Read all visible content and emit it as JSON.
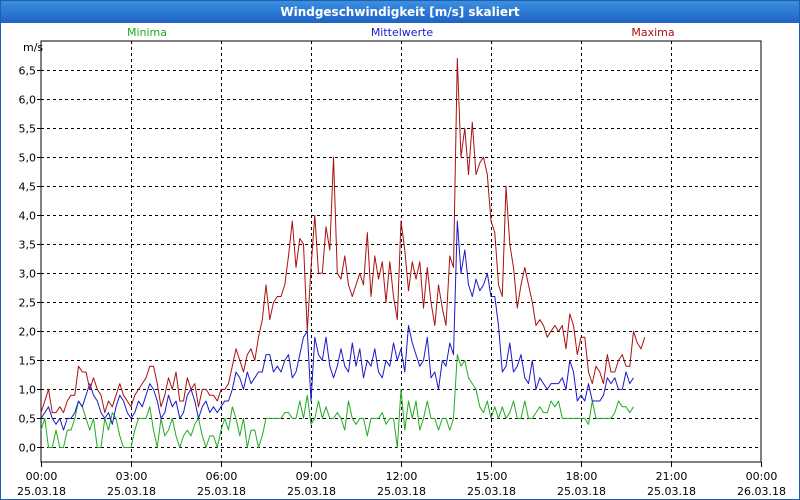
{
  "window": {
    "title": "Windgeschwindigkeit [m/s] skaliert"
  },
  "chart_data": {
    "type": "line",
    "title": "Windgeschwindigkeit [m/s] skaliert",
    "ylabel": "m/s",
    "xlabel": "",
    "ylim": [
      -0.25,
      7.0
    ],
    "xlim": [
      0,
      24
    ],
    "grid": true,
    "yticks": [
      0.0,
      0.5,
      1.0,
      1.5,
      2.0,
      2.5,
      3.0,
      3.5,
      4.0,
      4.5,
      5.0,
      5.5,
      6.0,
      6.5
    ],
    "ytick_labels": [
      "0,0",
      "0,5",
      "1,0",
      "1,5",
      "2,0",
      "2,5",
      "3,0",
      "3,5",
      "4,0",
      "4,5",
      "5,0",
      "5,5",
      "6,0",
      "6,5"
    ],
    "xticks": [
      {
        "hour": 0,
        "time": "00:00",
        "date": "25.03.18"
      },
      {
        "hour": 3,
        "time": "03:00",
        "date": "25.03.18"
      },
      {
        "hour": 6,
        "time": "06:00",
        "date": "25.03.18"
      },
      {
        "hour": 9,
        "time": "09:00",
        "date": "25.03.18"
      },
      {
        "hour": 12,
        "time": "12:00",
        "date": "25.03.18"
      },
      {
        "hour": 15,
        "time": "15:00",
        "date": "25.03.18"
      },
      {
        "hour": 18,
        "time": "18:00",
        "date": "25.03.18"
      },
      {
        "hour": 21,
        "time": "21:00",
        "date": "25.03.18"
      },
      {
        "hour": 24,
        "time": "00:00",
        "date": "26.03.18"
      }
    ],
    "legend": [
      "Minima",
      "Mittelwerte",
      "Maxima"
    ],
    "x_step_hours": 0.125,
    "series": [
      {
        "name": "Minima",
        "color": "#22aa22",
        "values": [
          0.3,
          0.5,
          0.0,
          0.0,
          0.3,
          0.0,
          0.0,
          0.3,
          0.3,
          0.5,
          0.8,
          0.7,
          0.5,
          0.3,
          0.5,
          0.0,
          0.0,
          0.5,
          0.3,
          0.6,
          0.5,
          0.2,
          0.0,
          0.0,
          0.0,
          0.3,
          0.5,
          0.5,
          0.5,
          0.7,
          0.3,
          0.0,
          0.5,
          0.2,
          0.3,
          0.5,
          0.2,
          0.0,
          0.2,
          0.3,
          0.2,
          0.4,
          0.5,
          0.2,
          0.0,
          0.2,
          0.2,
          0.0,
          0.3,
          0.5,
          0.3,
          0.7,
          0.5,
          0.2,
          0.5,
          0.0,
          0.3,
          0.3,
          0.0,
          0.2,
          0.5,
          0.5,
          0.5,
          0.5,
          0.5,
          0.6,
          0.6,
          0.5,
          0.5,
          0.8,
          0.5,
          0.9,
          0.4,
          0.5,
          0.8,
          0.5,
          0.7,
          0.5,
          0.5,
          0.6,
          0.5,
          0.3,
          0.8,
          0.5,
          0.4,
          0.5,
          0.5,
          0.2,
          0.5,
          0.5,
          0.5,
          0.6,
          0.4,
          0.5,
          0.5,
          0.0,
          1.0,
          0.3,
          0.8,
          0.5,
          0.8,
          0.3,
          0.5,
          0.8,
          0.5,
          0.5,
          0.3,
          0.5,
          0.5,
          0.3,
          0.5,
          1.6,
          1.4,
          1.5,
          1.2,
          1.1,
          1.0,
          0.7,
          0.6,
          0.8,
          0.5,
          0.7,
          0.5,
          0.7,
          0.5,
          0.6,
          0.8,
          0.5,
          0.5,
          0.8,
          0.5,
          0.5,
          0.6,
          0.7,
          0.6,
          0.6,
          0.8,
          0.7,
          0.8,
          0.5,
          0.5,
          0.5,
          0.5,
          0.5,
          0.5,
          0.5,
          0.4,
          0.8,
          0.5,
          0.5,
          0.5,
          0.5,
          0.5,
          0.6,
          0.8,
          0.7,
          0.7,
          0.6,
          0.7
        ]
      },
      {
        "name": "Mittelwerte",
        "color": "#1a1ac8",
        "values": [
          0.5,
          0.6,
          0.7,
          0.5,
          0.4,
          0.5,
          0.3,
          0.5,
          0.5,
          0.6,
          0.8,
          0.7,
          0.9,
          1.1,
          0.9,
          0.8,
          0.6,
          0.5,
          0.6,
          0.4,
          0.7,
          0.9,
          0.8,
          0.6,
          0.5,
          0.6,
          0.8,
          0.7,
          0.9,
          1.1,
          1.0,
          0.8,
          0.5,
          0.6,
          0.9,
          0.7,
          0.8,
          0.5,
          0.6,
          0.9,
          1.0,
          0.8,
          0.5,
          0.7,
          0.8,
          0.6,
          0.7,
          0.6,
          0.7,
          0.8,
          0.8,
          1.0,
          1.3,
          1.2,
          1.0,
          1.3,
          1.1,
          1.2,
          1.3,
          1.3,
          1.6,
          1.6,
          1.3,
          1.4,
          1.3,
          1.5,
          1.6,
          1.2,
          1.3,
          1.6,
          1.9,
          2.0,
          0.8,
          1.9,
          1.6,
          1.5,
          1.9,
          1.4,
          1.2,
          1.4,
          1.7,
          1.4,
          1.3,
          1.8,
          1.4,
          1.7,
          1.2,
          1.5,
          1.4,
          1.7,
          1.3,
          1.2,
          1.5,
          1.4,
          1.8,
          1.5,
          1.7,
          1.3,
          2.1,
          1.8,
          1.6,
          1.4,
          1.5,
          1.9,
          1.2,
          1.3,
          1.0,
          1.5,
          1.4,
          1.8,
          1.6,
          3.9,
          3.0,
          3.4,
          2.8,
          2.6,
          2.9,
          2.7,
          2.8,
          3.0,
          2.6,
          2.6,
          2.1,
          1.3,
          1.4,
          1.8,
          1.3,
          1.4,
          1.6,
          1.2,
          1.1,
          1.5,
          1.0,
          1.2,
          1.1,
          1.0,
          1.1,
          1.1,
          1.1,
          1.2,
          1.0,
          1.5,
          1.3,
          0.8,
          0.9,
          0.8,
          1.1,
          0.8,
          0.8,
          0.8,
          0.9,
          1.2,
          1.1,
          1.2,
          1.0,
          1.0,
          1.3,
          1.1,
          1.2
        ]
      },
      {
        "name": "Maxima",
        "color": "#aa1111",
        "values": [
          0.6,
          0.8,
          1.0,
          0.6,
          0.6,
          0.7,
          0.6,
          0.8,
          0.9,
          0.9,
          1.4,
          1.3,
          1.3,
          1.0,
          1.2,
          1.0,
          0.9,
          0.6,
          0.8,
          0.7,
          0.9,
          1.1,
          0.9,
          0.8,
          0.7,
          0.9,
          1.0,
          1.1,
          1.2,
          1.4,
          1.4,
          1.1,
          0.7,
          0.9,
          1.2,
          1.0,
          1.3,
          0.8,
          0.8,
          1.2,
          1.0,
          1.1,
          0.7,
          1.0,
          1.0,
          0.9,
          0.9,
          0.8,
          1.0,
          1.0,
          1.1,
          1.4,
          1.7,
          1.5,
          1.3,
          1.6,
          1.7,
          1.5,
          1.9,
          2.2,
          2.8,
          2.2,
          2.5,
          2.6,
          2.6,
          2.8,
          3.3,
          3.9,
          3.1,
          3.6,
          3.5,
          2.0,
          3.1,
          4.0,
          3.0,
          3.0,
          3.8,
          3.4,
          5.0,
          3.0,
          2.9,
          3.3,
          2.8,
          2.6,
          2.8,
          3.0,
          2.8,
          3.7,
          2.6,
          3.3,
          2.9,
          3.2,
          2.5,
          3.2,
          2.6,
          2.2,
          3.9,
          3.4,
          2.7,
          3.2,
          2.9,
          3.2,
          2.4,
          3.1,
          2.5,
          2.1,
          2.8,
          2.4,
          2.1,
          3.3,
          3.1,
          6.7,
          5.0,
          5.5,
          4.7,
          5.6,
          4.7,
          4.9,
          5.0,
          4.7,
          3.9,
          3.7,
          2.8,
          2.6,
          4.5,
          3.5,
          3.1,
          2.4,
          2.8,
          3.1,
          2.8,
          2.5,
          2.1,
          2.2,
          2.1,
          1.9,
          2.0,
          2.1,
          2.0,
          2.1,
          1.7,
          2.3,
          2.1,
          1.6,
          1.9,
          1.9,
          1.3,
          1.1,
          1.4,
          1.3,
          1.1,
          1.6,
          1.3,
          1.3,
          1.5,
          1.6,
          1.4,
          1.4,
          2.0,
          1.8,
          1.7,
          1.9
        ]
      }
    ]
  }
}
